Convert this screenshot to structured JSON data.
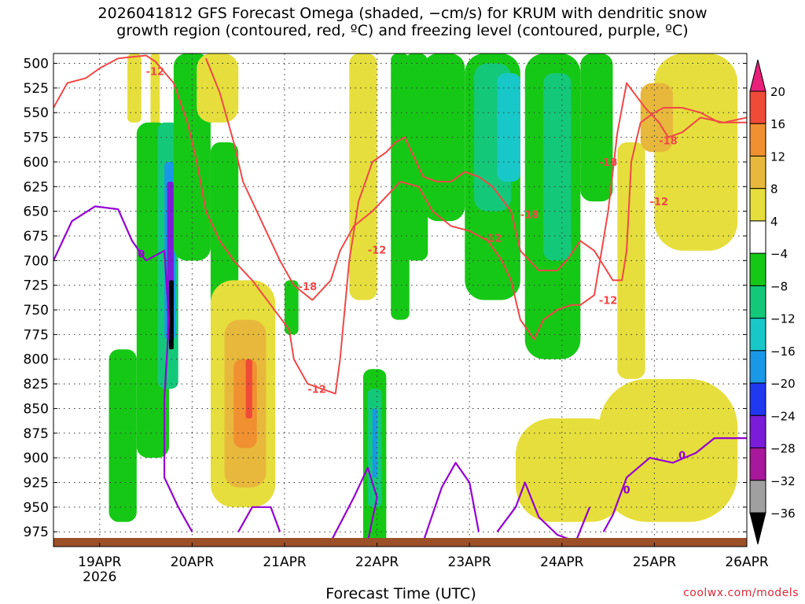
{
  "title": "2026041812 GFS Forecast Omega (shaded, −cm/s) for KRUM with dendritic snow\ngrowth region (contoured, red, ºC) and freezing level (contoured, purple, ºC)",
  "credit": "coolwx.com/models",
  "chart_data": {
    "type": "heatmap",
    "xlabel": "Forecast Time (UTC)",
    "x_ticks": [
      "19APR",
      "20APR",
      "21APR",
      "22APR",
      "23APR",
      "24APR",
      "25APR",
      "26APR"
    ],
    "x_year_label": "2026",
    "x_range_days": [
      18.5,
      26.0
    ],
    "y_ticks": [
      500,
      525,
      550,
      575,
      600,
      625,
      650,
      675,
      700,
      725,
      750,
      775,
      800,
      825,
      850,
      875,
      900,
      925,
      950,
      975
    ],
    "y_range_hpa": [
      490,
      990
    ],
    "grid": true,
    "colorbar": {
      "labels": [
        "20",
        "16",
        "12",
        "8",
        "4",
        "−4",
        "−8",
        "−12",
        "−16",
        "−20",
        "−24",
        "−28",
        "−32",
        "−36"
      ],
      "bins": [
        {
          "range": [
            20,
            24
          ],
          "color": "#e8207a"
        },
        {
          "range": [
            16,
            20
          ],
          "color": "#f04a38"
        },
        {
          "range": [
            12,
            16
          ],
          "color": "#f09030"
        },
        {
          "range": [
            8,
            12
          ],
          "color": "#e8b83c"
        },
        {
          "range": [
            4,
            8
          ],
          "color": "#e6de3c"
        },
        {
          "range": [
            -4,
            4
          ],
          "color": "#ffffff"
        },
        {
          "range": [
            -8,
            -4
          ],
          "color": "#16c816"
        },
        {
          "range": [
            -12,
            -8
          ],
          "color": "#14c87a"
        },
        {
          "range": [
            -16,
            -12
          ],
          "color": "#18c8c8"
        },
        {
          "range": [
            -20,
            -16
          ],
          "color": "#1a98e8"
        },
        {
          "range": [
            -24,
            -20
          ],
          "color": "#2038f0"
        },
        {
          "range": [
            -28,
            -24
          ],
          "color": "#7a1cd8"
        },
        {
          "range": [
            -32,
            -28
          ],
          "color": "#a8189a"
        },
        {
          "range": [
            -36,
            -32
          ],
          "color": "#a0a0a0"
        },
        {
          "range": [
            -40,
            -36
          ],
          "color": "#000000"
        }
      ]
    },
    "shaded_regions": [
      {
        "x": [
          19.1,
          19.4
        ],
        "y": [
          790,
          965
        ],
        "omega": -6
      },
      {
        "x": [
          19.3,
          19.45
        ],
        "y": [
          490,
          560
        ],
        "omega": 6
      },
      {
        "x": [
          19.55,
          19.65
        ],
        "y": [
          490,
          620
        ],
        "omega": 6
      },
      {
        "x": [
          19.4,
          19.75
        ],
        "y": [
          560,
          900
        ],
        "omega": -6
      },
      {
        "x": [
          19.63,
          19.85
        ],
        "y": [
          560,
          830
        ],
        "omega": -10
      },
      {
        "x": [
          19.7,
          19.82
        ],
        "y": [
          600,
          780
        ],
        "omega": -18
      },
      {
        "x": [
          19.73,
          19.8
        ],
        "y": [
          620,
          780
        ],
        "omega": -26
      },
      {
        "x": [
          19.75,
          19.8
        ],
        "y": [
          720,
          790
        ],
        "omega": -38
      },
      {
        "x": [
          19.8,
          20.2
        ],
        "y": [
          490,
          700
        ],
        "omega": -6
      },
      {
        "x": [
          20.05,
          20.5
        ],
        "y": [
          490,
          560
        ],
        "omega": 6
      },
      {
        "x": [
          20.2,
          20.5
        ],
        "y": [
          580,
          760
        ],
        "omega": -6
      },
      {
        "x": [
          20.2,
          20.9
        ],
        "y": [
          720,
          950
        ],
        "omega": 6
      },
      {
        "x": [
          20.35,
          20.8
        ],
        "y": [
          760,
          930
        ],
        "omega": 10
      },
      {
        "x": [
          20.45,
          20.7
        ],
        "y": [
          800,
          890
        ],
        "omega": 14
      },
      {
        "x": [
          20.58,
          20.65
        ],
        "y": [
          800,
          860
        ],
        "omega": 18
      },
      {
        "x": [
          21.0,
          21.15
        ],
        "y": [
          720,
          775
        ],
        "omega": -6
      },
      {
        "x": [
          21.7,
          22.0
        ],
        "y": [
          490,
          740
        ],
        "omega": 6
      },
      {
        "x": [
          21.85,
          22.1
        ],
        "y": [
          810,
          990
        ],
        "omega": -6
      },
      {
        "x": [
          21.9,
          22.05
        ],
        "y": [
          830,
          950
        ],
        "omega": -12
      },
      {
        "x": [
          21.95,
          22.0
        ],
        "y": [
          850,
          920
        ],
        "omega": -20
      },
      {
        "x": [
          22.15,
          22.35
        ],
        "y": [
          490,
          760
        ],
        "omega": -6
      },
      {
        "x": [
          22.3,
          22.55
        ],
        "y": [
          490,
          700
        ],
        "omega": -6
      },
      {
        "x": [
          22.5,
          22.95
        ],
        "y": [
          490,
          660
        ],
        "omega": -6
      },
      {
        "x": [
          22.95,
          23.55
        ],
        "y": [
          490,
          740
        ],
        "omega": -6
      },
      {
        "x": [
          23.05,
          23.45
        ],
        "y": [
          500,
          650
        ],
        "omega": -10
      },
      {
        "x": [
          23.3,
          23.55
        ],
        "y": [
          510,
          620
        ],
        "omega": -14
      },
      {
        "x": [
          23.6,
          24.2
        ],
        "y": [
          490,
          800
        ],
        "omega": -6
      },
      {
        "x": [
          23.8,
          24.1
        ],
        "y": [
          510,
          700
        ],
        "omega": -10
      },
      {
        "x": [
          24.2,
          24.55
        ],
        "y": [
          490,
          640
        ],
        "omega": -6
      },
      {
        "x": [
          23.5,
          24.7
        ],
        "y": [
          860,
          965
        ],
        "omega": 6
      },
      {
        "x": [
          24.4,
          25.9
        ],
        "y": [
          820,
          965
        ],
        "omega": 6
      },
      {
        "x": [
          24.6,
          24.9
        ],
        "y": [
          580,
          820
        ],
        "omega": 6
      },
      {
        "x": [
          25.0,
          25.9
        ],
        "y": [
          490,
          690
        ],
        "omega": 6
      },
      {
        "x": [
          24.85,
          25.2
        ],
        "y": [
          520,
          590
        ],
        "omega": 10
      }
    ],
    "freezing_level_contour": {
      "label": "0",
      "color": "#9400d3",
      "segments": [
        [
          [
            18.5,
            700
          ],
          [
            18.7,
            660
          ],
          [
            18.95,
            645
          ],
          [
            19.2,
            648
          ],
          [
            19.35,
            680
          ],
          [
            19.5,
            700
          ],
          [
            19.7,
            690
          ],
          [
            19.75,
            760
          ],
          [
            19.7,
            840
          ],
          [
            19.7,
            920
          ],
          [
            19.85,
            950
          ],
          [
            20.0,
            975
          ]
        ],
        [
          [
            20.5,
            975
          ],
          [
            20.65,
            950
          ],
          [
            20.85,
            950
          ],
          [
            20.95,
            975
          ]
        ],
        [
          [
            21.5,
            985
          ],
          [
            21.75,
            940
          ],
          [
            21.9,
            910
          ],
          [
            22.0,
            940
          ],
          [
            21.9,
            985
          ]
        ],
        [
          [
            22.5,
            985
          ],
          [
            22.7,
            930
          ],
          [
            22.85,
            905
          ],
          [
            23.0,
            925
          ],
          [
            23.1,
            975
          ]
        ],
        [
          [
            23.3,
            975
          ],
          [
            23.5,
            950
          ],
          [
            23.6,
            925
          ],
          [
            23.75,
            960
          ],
          [
            23.95,
            978
          ],
          [
            24.15,
            985
          ],
          [
            24.3,
            950
          ]
        ],
        [
          [
            24.45,
            975
          ],
          [
            24.55,
            958
          ],
          [
            24.7,
            920
          ],
          [
            24.95,
            900
          ],
          [
            25.2,
            905
          ],
          [
            25.45,
            895
          ],
          [
            25.65,
            880
          ],
          [
            25.85,
            880
          ],
          [
            26.0,
            880
          ]
        ]
      ]
    },
    "dendritic_zone_contours": [
      {
        "label": "-12",
        "color": "#f04848",
        "points": [
          [
            18.5,
            545
          ],
          [
            18.65,
            520
          ],
          [
            18.85,
            515
          ],
          [
            19.0,
            505
          ],
          [
            19.2,
            495
          ],
          [
            19.5,
            492
          ],
          [
            19.6,
            498
          ],
          [
            19.8,
            520
          ],
          [
            19.95,
            560
          ],
          [
            20.05,
            600
          ],
          [
            20.15,
            650
          ],
          [
            20.3,
            680
          ],
          [
            20.45,
            700
          ],
          [
            20.65,
            720
          ],
          [
            20.85,
            745
          ],
          [
            21.05,
            770
          ],
          [
            21.1,
            800
          ],
          [
            21.25,
            825
          ],
          [
            21.55,
            835
          ],
          [
            21.6,
            800
          ],
          [
            21.7,
            700
          ],
          [
            21.8,
            640
          ],
          [
            21.95,
            600
          ],
          [
            22.1,
            590
          ],
          [
            22.2,
            580
          ],
          [
            22.3,
            575
          ],
          [
            22.5,
            615
          ],
          [
            22.65,
            620
          ],
          [
            22.8,
            620
          ],
          [
            22.95,
            610
          ],
          [
            23.1,
            615
          ],
          [
            23.25,
            625
          ],
          [
            23.45,
            650
          ],
          [
            23.55,
            690
          ],
          [
            23.75,
            710
          ],
          [
            23.95,
            710
          ],
          [
            24.05,
            700
          ],
          [
            24.2,
            680
          ],
          [
            24.35,
            690
          ],
          [
            24.55,
            720
          ],
          [
            24.65,
            720
          ],
          [
            24.7,
            690
          ],
          [
            24.75,
            600
          ],
          [
            24.85,
            560
          ],
          [
            25.0,
            550
          ],
          [
            25.1,
            545
          ],
          [
            25.3,
            545
          ],
          [
            25.5,
            550
          ],
          [
            25.7,
            560
          ],
          [
            26.0,
            560
          ]
        ]
      },
      {
        "label": "-18",
        "color": "#f04848",
        "points": [
          [
            20.15,
            495
          ],
          [
            20.3,
            530
          ],
          [
            20.45,
            580
          ],
          [
            20.55,
            620
          ],
          [
            20.75,
            660
          ],
          [
            20.95,
            700
          ],
          [
            21.1,
            725
          ],
          [
            21.3,
            740
          ],
          [
            21.5,
            720
          ],
          [
            21.6,
            690
          ],
          [
            21.75,
            665
          ],
          [
            21.95,
            650
          ],
          [
            22.1,
            635
          ],
          [
            22.25,
            620
          ],
          [
            22.45,
            625
          ],
          [
            22.6,
            650
          ],
          [
            22.8,
            665
          ],
          [
            23.0,
            670
          ],
          [
            23.2,
            680
          ],
          [
            23.35,
            700
          ],
          [
            23.45,
            720
          ],
          [
            23.55,
            760
          ],
          [
            23.7,
            780
          ],
          [
            23.8,
            760
          ],
          [
            23.95,
            750
          ],
          [
            24.1,
            745
          ],
          [
            24.2,
            745
          ],
          [
            24.35,
            735
          ],
          [
            24.5,
            650
          ],
          [
            24.6,
            570
          ],
          [
            24.7,
            520
          ],
          [
            24.9,
            545
          ],
          [
            25.05,
            560
          ],
          [
            25.15,
            575
          ],
          [
            25.3,
            570
          ],
          [
            25.5,
            555
          ],
          [
            25.75,
            560
          ],
          [
            26.0,
            555
          ]
        ]
      }
    ],
    "terrain": {
      "color": "#9c5028",
      "surface_hpa": 978
    }
  }
}
